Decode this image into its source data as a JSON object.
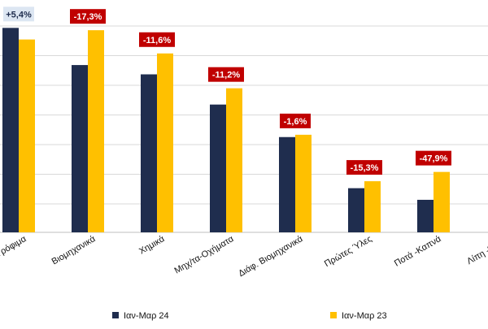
{
  "chart_data": {
    "type": "bar",
    "title": "",
    "xlabel": "",
    "ylabel": "",
    "ylim": [
      0,
      100
    ],
    "grid": true,
    "legend_position": "bottom",
    "categories": [
      "Τρόφιμα",
      "Βιομηχανικά",
      "Χημικά",
      "Μηχ/τα-Οχήματα",
      "Διάφ. Βιομηχανικά",
      "Πρώτες Ύλες",
      "Ποτά -Καπνά",
      "Λίπη -Έλαια"
    ],
    "series": [
      {
        "name": "Ιαν-Μαρ 24",
        "color": "#1f2d4e",
        "values": [
          88,
          72,
          68,
          55,
          41,
          19,
          14,
          0
        ]
      },
      {
        "name": "Ιαν-Μαρ 23",
        "color": "#ffc000",
        "values": [
          83,
          87,
          77,
          62,
          42,
          22,
          26,
          0
        ]
      }
    ],
    "data_labels": [
      "+5,4%",
      "-17,3%",
      "-11,6%",
      "-11,2%",
      "-1,6%",
      "-15,3%",
      "-47,9%",
      ""
    ],
    "data_label_colors": {
      "positive_bg": "#dce6f2",
      "positive_text": "#1f2d4e",
      "negative_bg": "#c00000",
      "negative_text": "#ffffff"
    }
  }
}
